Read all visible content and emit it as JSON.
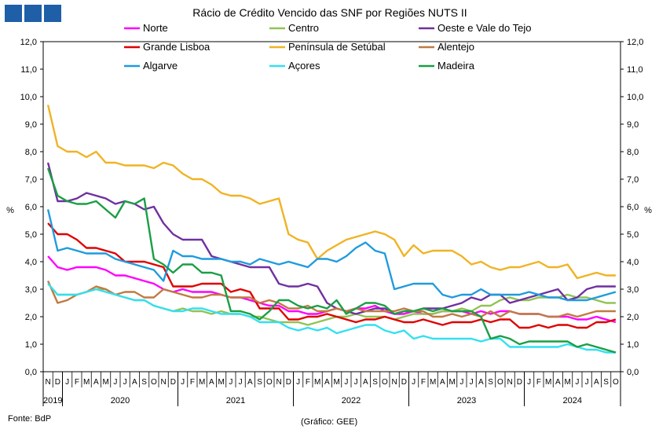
{
  "chart_data": {
    "type": "line",
    "title": "Rácio de Crédito Vencido das SNF por Regiões NUTS II",
    "ylabel_left": "%",
    "ylabel_right": "%",
    "ylim": [
      0,
      12
    ],
    "yticks": [
      "0,0",
      "1,0",
      "2,0",
      "3,0",
      "4,0",
      "5,0",
      "6,0",
      "7,0",
      "8,0",
      "9,0",
      "10,0",
      "11,0",
      "12,0"
    ],
    "month_labels": [
      "N",
      "D",
      "J",
      "F",
      "M",
      "A",
      "M",
      "J",
      "J",
      "A",
      "S",
      "O",
      "N",
      "D",
      "J",
      "F",
      "M",
      "A",
      "M",
      "J",
      "J",
      "A",
      "S",
      "O",
      "N",
      "D",
      "J",
      "F",
      "M",
      "A",
      "M",
      "J",
      "J",
      "A",
      "S",
      "O",
      "N",
      "D",
      "J",
      "F",
      "M",
      "A",
      "M",
      "J",
      "J",
      "A",
      "S",
      "O",
      "N",
      "D",
      "J",
      "F",
      "M",
      "A",
      "M",
      "J",
      "J",
      "A",
      "S",
      "O"
    ],
    "year_labels": [
      {
        "label": "2019",
        "start": 0,
        "end": 1
      },
      {
        "label": "2020",
        "start": 2,
        "end": 13
      },
      {
        "label": "2021",
        "start": 14,
        "end": 25
      },
      {
        "label": "2022",
        "start": 26,
        "end": 37
      },
      {
        "label": "2023",
        "start": 38,
        "end": 49
      },
      {
        "label": "2024",
        "start": 50,
        "end": 59
      }
    ],
    "series": [
      {
        "name": "Norte",
        "color": "#ff00ff",
        "values": [
          4.2,
          3.8,
          3.7,
          3.8,
          3.8,
          3.8,
          3.7,
          3.5,
          3.5,
          3.4,
          3.3,
          3.2,
          3.0,
          2.9,
          3.0,
          2.9,
          2.9,
          2.9,
          2.8,
          2.7,
          2.7,
          2.6,
          2.5,
          2.4,
          2.4,
          2.2,
          2.2,
          2.1,
          2.1,
          2.2,
          2.3,
          2.2,
          2.3,
          2.3,
          2.4,
          2.2,
          2.1,
          2.1,
          2.2,
          2.1,
          2.1,
          2.2,
          2.2,
          2.2,
          2.1,
          2.2,
          2.1,
          2.2,
          2.2,
          2.1,
          2.1,
          2.1,
          2.0,
          2.0,
          2.0,
          1.9,
          1.9,
          2.0,
          1.9,
          1.8
        ]
      },
      {
        "name": "Centro",
        "color": "#92c353",
        "values": [
          3.2,
          2.8,
          2.8,
          2.8,
          2.9,
          3.0,
          3.0,
          2.8,
          2.7,
          2.6,
          2.6,
          2.4,
          2.3,
          2.2,
          2.3,
          2.2,
          2.2,
          2.1,
          2.2,
          2.1,
          2.1,
          2.0,
          2.0,
          1.9,
          1.8,
          1.8,
          1.8,
          1.7,
          1.8,
          1.9,
          2.0,
          2.0,
          2.1,
          2.0,
          2.0,
          2.0,
          1.9,
          2.0,
          2.1,
          2.1,
          2.1,
          2.2,
          2.2,
          2.3,
          2.2,
          2.4,
          2.4,
          2.6,
          2.7,
          2.6,
          2.6,
          2.7,
          2.7,
          2.7,
          2.8,
          2.7,
          2.7,
          2.6,
          2.5,
          2.5
        ]
      },
      {
        "name": "Oeste e Vale do Tejo",
        "color": "#7030a0",
        "values": [
          7.6,
          6.2,
          6.2,
          6.3,
          6.5,
          6.4,
          6.3,
          6.1,
          6.2,
          6.1,
          5.9,
          6.0,
          5.4,
          5.0,
          4.8,
          4.8,
          4.8,
          4.2,
          4.1,
          4.0,
          3.9,
          3.8,
          3.8,
          3.8,
          3.2,
          3.1,
          3.1,
          3.2,
          3.1,
          2.5,
          2.3,
          2.2,
          2.1,
          2.2,
          2.3,
          2.3,
          2.1,
          2.2,
          2.2,
          2.3,
          2.3,
          2.3,
          2.4,
          2.5,
          2.7,
          2.6,
          2.8,
          2.8,
          2.5,
          2.6,
          2.7,
          2.8,
          2.9,
          3.0,
          2.6,
          2.7,
          3.0,
          3.1,
          3.1,
          3.1
        ]
      },
      {
        "name": "Grande Lisboa",
        "color": "#e00000",
        "values": [
          5.4,
          5.0,
          5.0,
          4.8,
          4.5,
          4.5,
          4.4,
          4.3,
          4.0,
          4.0,
          4.0,
          3.9,
          3.8,
          3.1,
          3.1,
          3.1,
          3.2,
          3.2,
          3.2,
          2.9,
          3.0,
          2.9,
          2.3,
          2.3,
          2.3,
          1.9,
          1.9,
          2.0,
          2.0,
          2.1,
          2.0,
          1.9,
          1.8,
          1.9,
          1.9,
          2.0,
          1.9,
          1.8,
          1.8,
          1.9,
          1.8,
          1.7,
          1.8,
          1.8,
          1.8,
          1.9,
          1.8,
          1.9,
          1.9,
          1.6,
          1.6,
          1.7,
          1.6,
          1.7,
          1.7,
          1.6,
          1.6,
          1.8,
          1.8,
          1.9
        ]
      },
      {
        "name": "Península de Setúbal",
        "color": "#f0b323",
        "values": [
          9.7,
          8.2,
          8.0,
          8.0,
          7.8,
          8.0,
          7.6,
          7.6,
          7.5,
          7.5,
          7.5,
          7.4,
          7.6,
          7.5,
          7.2,
          7.0,
          7.0,
          6.8,
          6.5,
          6.4,
          6.4,
          6.3,
          6.1,
          6.2,
          6.3,
          5.0,
          4.8,
          4.7,
          4.1,
          4.4,
          4.6,
          4.8,
          4.9,
          5.0,
          5.1,
          5.0,
          4.8,
          4.2,
          4.6,
          4.3,
          4.4,
          4.4,
          4.4,
          4.2,
          3.9,
          4.0,
          3.8,
          3.7,
          3.8,
          3.8,
          3.9,
          4.0,
          3.8,
          3.8,
          3.9,
          3.4,
          3.5,
          3.6,
          3.5,
          3.5
        ]
      },
      {
        "name": "Alentejo",
        "color": "#c07a42",
        "values": [
          3.3,
          2.5,
          2.6,
          2.8,
          2.9,
          3.1,
          3.0,
          2.8,
          2.9,
          2.9,
          2.7,
          2.7,
          3.0,
          2.9,
          2.8,
          2.7,
          2.7,
          2.8,
          2.8,
          2.7,
          2.7,
          2.7,
          2.5,
          2.6,
          2.5,
          2.3,
          2.3,
          2.4,
          2.2,
          2.2,
          2.3,
          2.2,
          2.3,
          2.2,
          2.2,
          2.2,
          2.2,
          2.3,
          2.2,
          2.2,
          2.0,
          2.0,
          2.1,
          2.0,
          2.1,
          2.0,
          2.2,
          2.0,
          2.2,
          2.1,
          2.1,
          2.1,
          2.0,
          2.0,
          2.1,
          2.0,
          2.1,
          2.2,
          2.2,
          2.2
        ]
      },
      {
        "name": "Algarve",
        "color": "#1f9bde",
        "values": [
          5.9,
          4.4,
          4.5,
          4.4,
          4.3,
          4.3,
          4.3,
          4.1,
          4.0,
          3.9,
          3.8,
          3.7,
          3.3,
          4.4,
          4.2,
          4.2,
          4.1,
          4.1,
          4.1,
          4.0,
          4.0,
          3.9,
          4.1,
          4.0,
          3.9,
          4.0,
          3.9,
          3.8,
          4.1,
          4.1,
          4.0,
          4.2,
          4.5,
          4.7,
          4.4,
          4.3,
          3.0,
          3.1,
          3.2,
          3.2,
          3.2,
          2.8,
          2.7,
          2.8,
          2.8,
          3.0,
          2.8,
          2.8,
          2.8,
          2.8,
          2.9,
          2.8,
          2.7,
          2.7,
          2.6,
          2.6,
          2.6,
          2.7,
          2.8,
          2.9
        ]
      },
      {
        "name": "Açores",
        "color": "#33e0f0",
        "values": [
          3.2,
          2.8,
          2.8,
          2.8,
          2.9,
          3.0,
          2.9,
          2.8,
          2.7,
          2.6,
          2.6,
          2.4,
          2.3,
          2.2,
          2.2,
          2.3,
          2.3,
          2.2,
          2.1,
          2.1,
          2.1,
          2.0,
          1.8,
          1.8,
          1.8,
          1.6,
          1.5,
          1.6,
          1.5,
          1.6,
          1.4,
          1.5,
          1.6,
          1.7,
          1.7,
          1.5,
          1.4,
          1.5,
          1.2,
          1.3,
          1.2,
          1.2,
          1.2,
          1.2,
          1.2,
          1.1,
          1.2,
          1.2,
          0.9,
          0.9,
          0.9,
          0.9,
          0.9,
          0.9,
          1.0,
          0.9,
          0.8,
          0.8,
          0.7,
          0.7
        ]
      },
      {
        "name": "Madeira",
        "color": "#1a9e45",
        "values": [
          7.4,
          6.4,
          6.2,
          6.1,
          6.1,
          6.2,
          5.9,
          5.6,
          6.2,
          6.1,
          6.3,
          4.1,
          3.9,
          3.6,
          3.9,
          3.9,
          3.6,
          3.6,
          3.5,
          2.2,
          2.2,
          2.1,
          1.9,
          2.2,
          2.6,
          2.6,
          2.4,
          2.3,
          2.4,
          2.3,
          2.6,
          2.1,
          2.3,
          2.5,
          2.5,
          2.4,
          2.1,
          2.2,
          2.2,
          2.3,
          2.2,
          2.3,
          2.2,
          2.2,
          2.2,
          2.0,
          1.2,
          1.3,
          1.2,
          1.0,
          1.1,
          1.1,
          1.1,
          1.1,
          1.1,
          0.9,
          1.0,
          0.9,
          0.8,
          0.7
        ]
      }
    ]
  },
  "footer": {
    "source": "Fonte: BdP",
    "credit": "(Gráfico: GEE)"
  }
}
